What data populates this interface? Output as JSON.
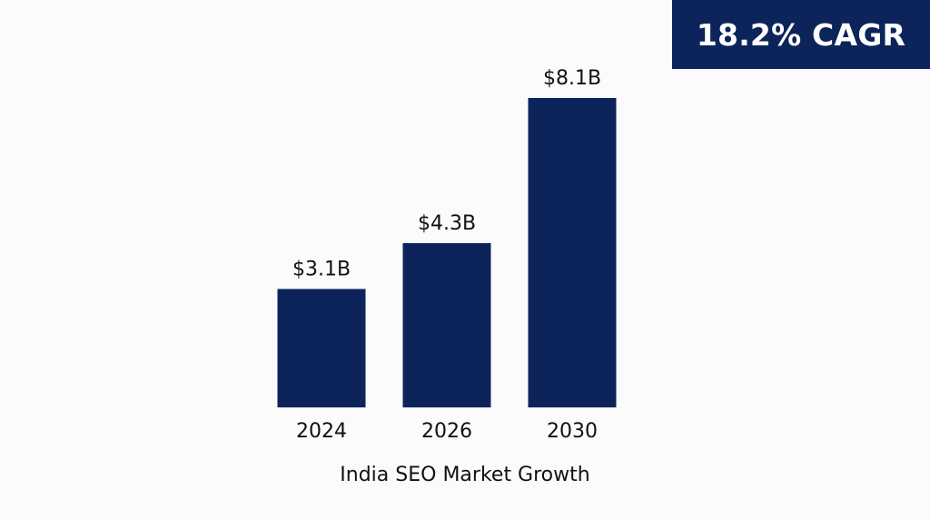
{
  "badge": {
    "text": "18.2% CAGR",
    "background": "#0c2459",
    "text_color": "#ffffff"
  },
  "chart_data": {
    "type": "bar",
    "title": "India SEO Market Growth",
    "xlabel": "",
    "ylabel": "",
    "categories": [
      "2024",
      "2026",
      "2030"
    ],
    "values": [
      3.1,
      4.3,
      8.1
    ],
    "value_labels": [
      "$3.1B",
      "$4.3B",
      "$8.1B"
    ],
    "ylim": [
      0,
      8.1
    ],
    "grid": false,
    "bar_color": "#0c2459",
    "text_color": "#111111"
  }
}
